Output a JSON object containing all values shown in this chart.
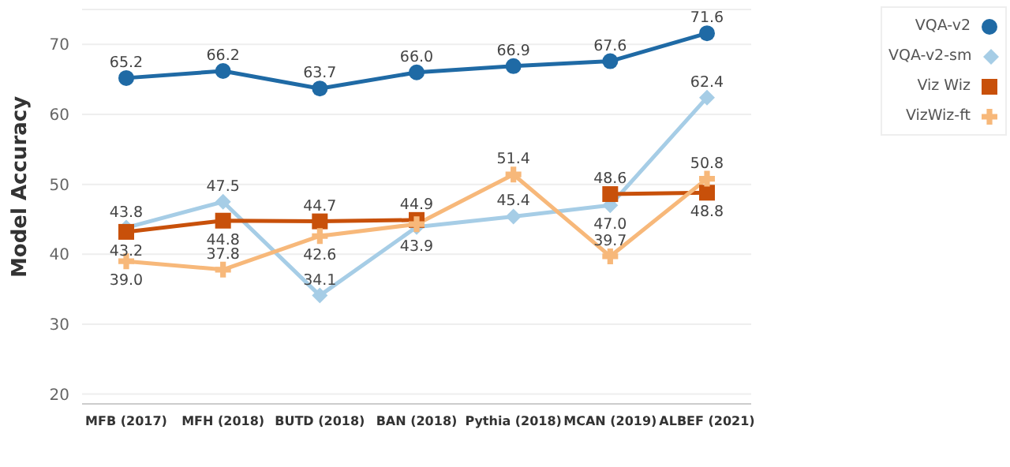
{
  "chart_data": {
    "type": "line",
    "ylabel": "Model Accuracy",
    "categories": [
      "MFB (2017)",
      "MFH (2018)",
      "BUTD (2018)",
      "BAN (2018)",
      "Pythia (2018)",
      "MCAN (2019)",
      "ALBEF (2021)"
    ],
    "series": [
      {
        "name": "VQA-v2",
        "color": "#1f6aa5",
        "marker": "circle",
        "values": [
          65.2,
          66.2,
          63.7,
          66.0,
          66.9,
          67.6,
          71.6
        ],
        "value_labels": [
          "65.2",
          "66.2",
          "63.7",
          "66.0",
          "66.9",
          "67.6",
          "71.6"
        ]
      },
      {
        "name": "VQA-v2-sm",
        "color": "#a6cde6",
        "marker": "diamond",
        "values": [
          43.8,
          47.5,
          34.1,
          43.9,
          45.4,
          47.0,
          62.4
        ],
        "value_labels": [
          "43.8",
          "47.5",
          "34.1",
          "43.9",
          "45.4",
          "47.0",
          "62.4"
        ]
      },
      {
        "name": "Viz Wiz",
        "color": "#c8500a",
        "marker": "square",
        "values": [
          43.2,
          44.8,
          44.7,
          44.9,
          null,
          48.6,
          48.8
        ],
        "value_labels": [
          "43.2",
          "44.8",
          "44.7",
          "44.9",
          null,
          "48.6",
          "48.8"
        ]
      },
      {
        "name": "VizWiz-ft",
        "color": "#f7b87a",
        "marker": "cross",
        "values": [
          39.0,
          37.8,
          42.6,
          44.3,
          51.4,
          39.7,
          50.8
        ],
        "value_labels": [
          "39.0",
          "37.8",
          "42.6",
          null,
          "51.4",
          "39.7",
          "50.8"
        ]
      }
    ],
    "ylim": [
      18.6,
      75
    ],
    "yticks": [
      20,
      30,
      40,
      50,
      60,
      70
    ],
    "grid": "y",
    "legend": "top right"
  }
}
